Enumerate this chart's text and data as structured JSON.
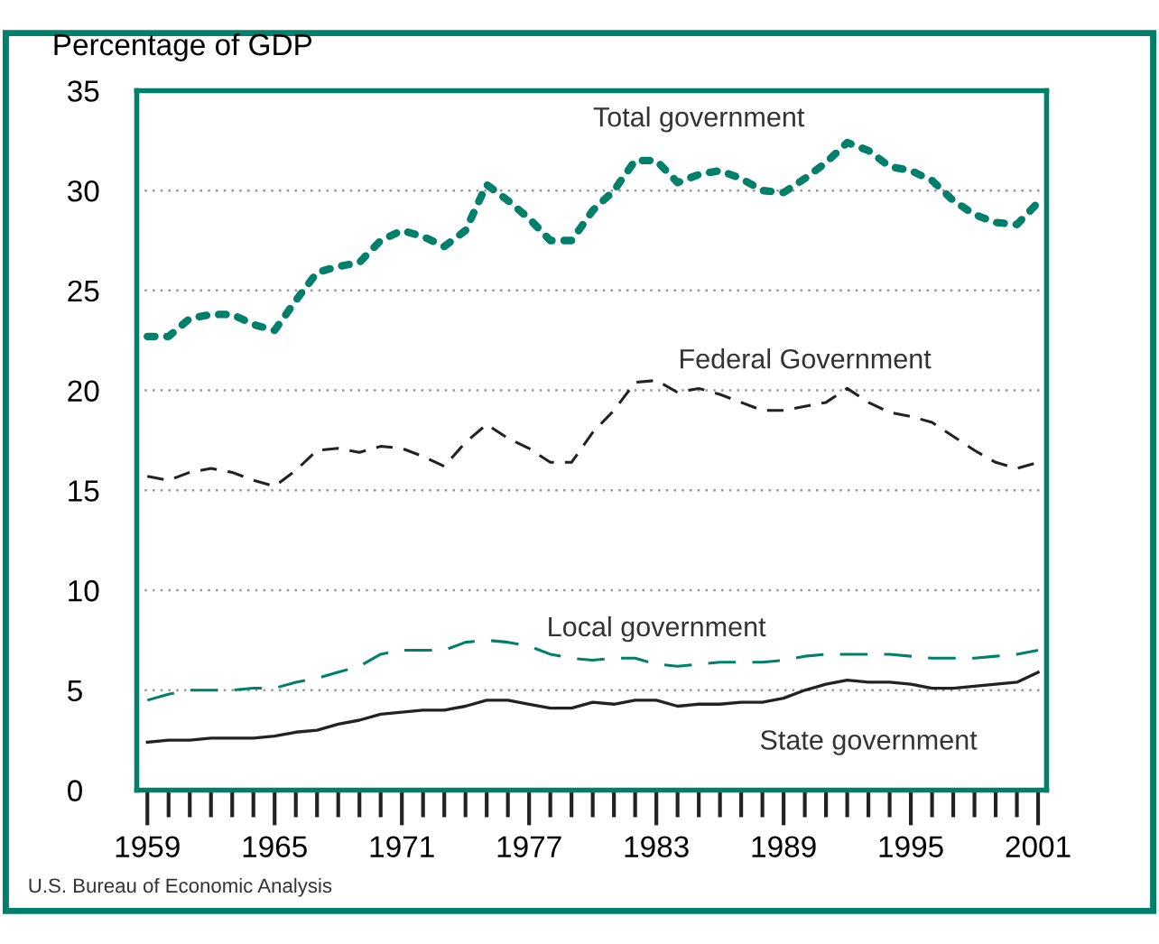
{
  "chart_data": {
    "type": "line",
    "ylabel": "Percentage of GDP",
    "x": [
      1959,
      1960,
      1961,
      1962,
      1963,
      1964,
      1965,
      1966,
      1967,
      1968,
      1969,
      1970,
      1971,
      1972,
      1973,
      1974,
      1975,
      1976,
      1977,
      1978,
      1979,
      1980,
      1981,
      1982,
      1983,
      1984,
      1985,
      1986,
      1987,
      1988,
      1989,
      1990,
      1991,
      1992,
      1993,
      1994,
      1995,
      1996,
      1997,
      1998,
      1999,
      2000,
      2001
    ],
    "series": [
      {
        "name": "Total government",
        "color": "#00806a",
        "line_style": "dotted",
        "values": [
          22.7,
          22.7,
          23.6,
          23.8,
          23.8,
          23.3,
          23.0,
          24.5,
          25.9,
          26.2,
          26.4,
          27.5,
          28.0,
          27.7,
          27.2,
          28.0,
          30.3,
          29.5,
          28.6,
          27.5,
          27.5,
          29.0,
          30.0,
          31.5,
          31.5,
          30.4,
          30.8,
          31.0,
          30.6,
          30.0,
          29.9,
          30.6,
          31.4,
          32.4,
          32.0,
          31.2,
          31.0,
          30.5,
          29.5,
          28.8,
          28.4,
          28.3,
          29.4
        ]
      },
      {
        "name": "Federal Government",
        "color": "#222222",
        "line_style": "dashed",
        "values": [
          15.7,
          15.5,
          15.9,
          16.1,
          15.9,
          15.5,
          15.2,
          16.0,
          17.0,
          17.1,
          16.9,
          17.2,
          17.1,
          16.7,
          16.2,
          17.4,
          18.3,
          17.6,
          17.1,
          16.4,
          16.4,
          17.9,
          19.0,
          20.4,
          20.5,
          19.9,
          20.1,
          19.8,
          19.4,
          19.0,
          19.0,
          19.2,
          19.4,
          20.1,
          19.4,
          18.9,
          18.7,
          18.4,
          17.7,
          17.0,
          16.4,
          16.1,
          16.4
        ]
      },
      {
        "name": "Local government",
        "color": "#00806a",
        "line_style": "dashed",
        "values": [
          4.5,
          4.8,
          5.0,
          5.0,
          5.0,
          5.1,
          5.1,
          5.4,
          5.6,
          5.9,
          6.2,
          6.8,
          7.0,
          7.0,
          7.0,
          7.4,
          7.5,
          7.4,
          7.2,
          6.8,
          6.6,
          6.5,
          6.6,
          6.6,
          6.3,
          6.2,
          6.3,
          6.4,
          6.4,
          6.4,
          6.5,
          6.7,
          6.8,
          6.8,
          6.8,
          6.8,
          6.7,
          6.6,
          6.6,
          6.6,
          6.7,
          6.8,
          7.0
        ]
      },
      {
        "name": "State government",
        "color": "#222222",
        "line_style": "solid",
        "values": [
          2.4,
          2.5,
          2.5,
          2.6,
          2.6,
          2.6,
          2.7,
          2.9,
          3.0,
          3.3,
          3.5,
          3.8,
          3.9,
          4.0,
          4.0,
          4.2,
          4.5,
          4.5,
          4.3,
          4.1,
          4.1,
          4.4,
          4.3,
          4.5,
          4.5,
          4.2,
          4.3,
          4.3,
          4.4,
          4.4,
          4.6,
          5.0,
          5.3,
          5.5,
          5.4,
          5.4,
          5.3,
          5.1,
          5.1,
          5.2,
          5.3,
          5.4,
          5.9
        ]
      }
    ],
    "xlim": [
      1958.5,
      2001.4
    ],
    "xticks": [
      1959,
      {
        "value": 1960,
        "label": null
      },
      {
        "value": 1961,
        "label": null
      },
      {
        "value": 1962,
        "label": null
      },
      {
        "value": 1963,
        "label": null
      },
      {
        "value": 1964,
        "label": null
      },
      1965,
      {
        "value": 1966,
        "label": null
      },
      {
        "value": 1967,
        "label": null
      },
      {
        "value": 1968,
        "label": null
      },
      {
        "value": 1969,
        "label": null
      },
      {
        "value": 1970,
        "label": null
      },
      1971,
      {
        "value": 1972,
        "label": null
      },
      {
        "value": 1973,
        "label": null
      },
      {
        "value": 1974,
        "label": null
      },
      {
        "value": 1975,
        "label": null
      },
      {
        "value": 1976,
        "label": null
      },
      1977,
      {
        "value": 1978,
        "label": null
      },
      {
        "value": 1979,
        "label": null
      },
      {
        "value": 1980,
        "label": null
      },
      {
        "value": 1981,
        "label": null
      },
      {
        "value": 1982,
        "label": null
      },
      1983,
      {
        "value": 1984,
        "label": null
      },
      {
        "value": 1985,
        "label": null
      },
      {
        "value": 1986,
        "label": null
      },
      {
        "value": 1987,
        "label": null
      },
      {
        "value": 1988,
        "label": null
      },
      1989,
      {
        "value": 1990,
        "label": null
      },
      {
        "value": 1991,
        "label": null
      },
      {
        "value": 1992,
        "label": null
      },
      {
        "value": 1993,
        "label": null
      },
      {
        "value": 1994,
        "label": null
      },
      1995,
      {
        "value": 1996,
        "label": null
      },
      {
        "value": 1997,
        "label": null
      },
      {
        "value": 1998,
        "label": null
      },
      {
        "value": 1999,
        "label": null
      },
      {
        "value": 2000,
        "label": null
      },
      2001
    ],
    "ylim": [
      0,
      35
    ],
    "yticks": [
      0,
      5,
      10,
      15,
      20,
      25,
      30,
      35
    ],
    "grid": "y",
    "legend": false,
    "annotations": [
      "U.S. Bureau of Economic Analysis"
    ]
  }
}
